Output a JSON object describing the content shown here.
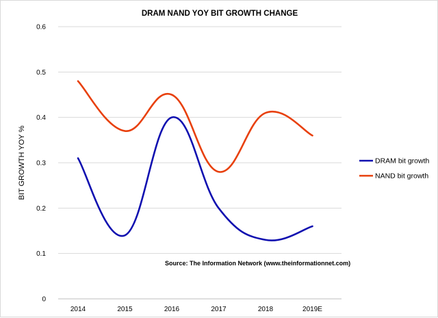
{
  "chart_data": {
    "type": "line",
    "title": "DRAM NAND YOY BIT GROWTH CHANGE",
    "xlabel": "",
    "ylabel": "BIT GROWTH YOY %",
    "categories": [
      "2014",
      "2015",
      "2016",
      "2017",
      "2018",
      "2019E"
    ],
    "ylim": [
      0,
      0.6
    ],
    "yticks": [
      "0",
      "0.1",
      "0.2",
      "0.3",
      "0.4",
      "0.5",
      "0.6"
    ],
    "grid": true,
    "legend_position": "right",
    "series": [
      {
        "name": "DRAM bit growth",
        "color": "#1010b0",
        "values": [
          0.31,
          0.14,
          0.4,
          0.2,
          0.13,
          0.16
        ]
      },
      {
        "name": "NAND bit growth",
        "color": "#e8400c",
        "values": [
          0.48,
          0.37,
          0.45,
          0.28,
          0.41,
          0.36
        ]
      }
    ],
    "annotation": "Source: The Information Network (www.theinformationnet.com)"
  }
}
